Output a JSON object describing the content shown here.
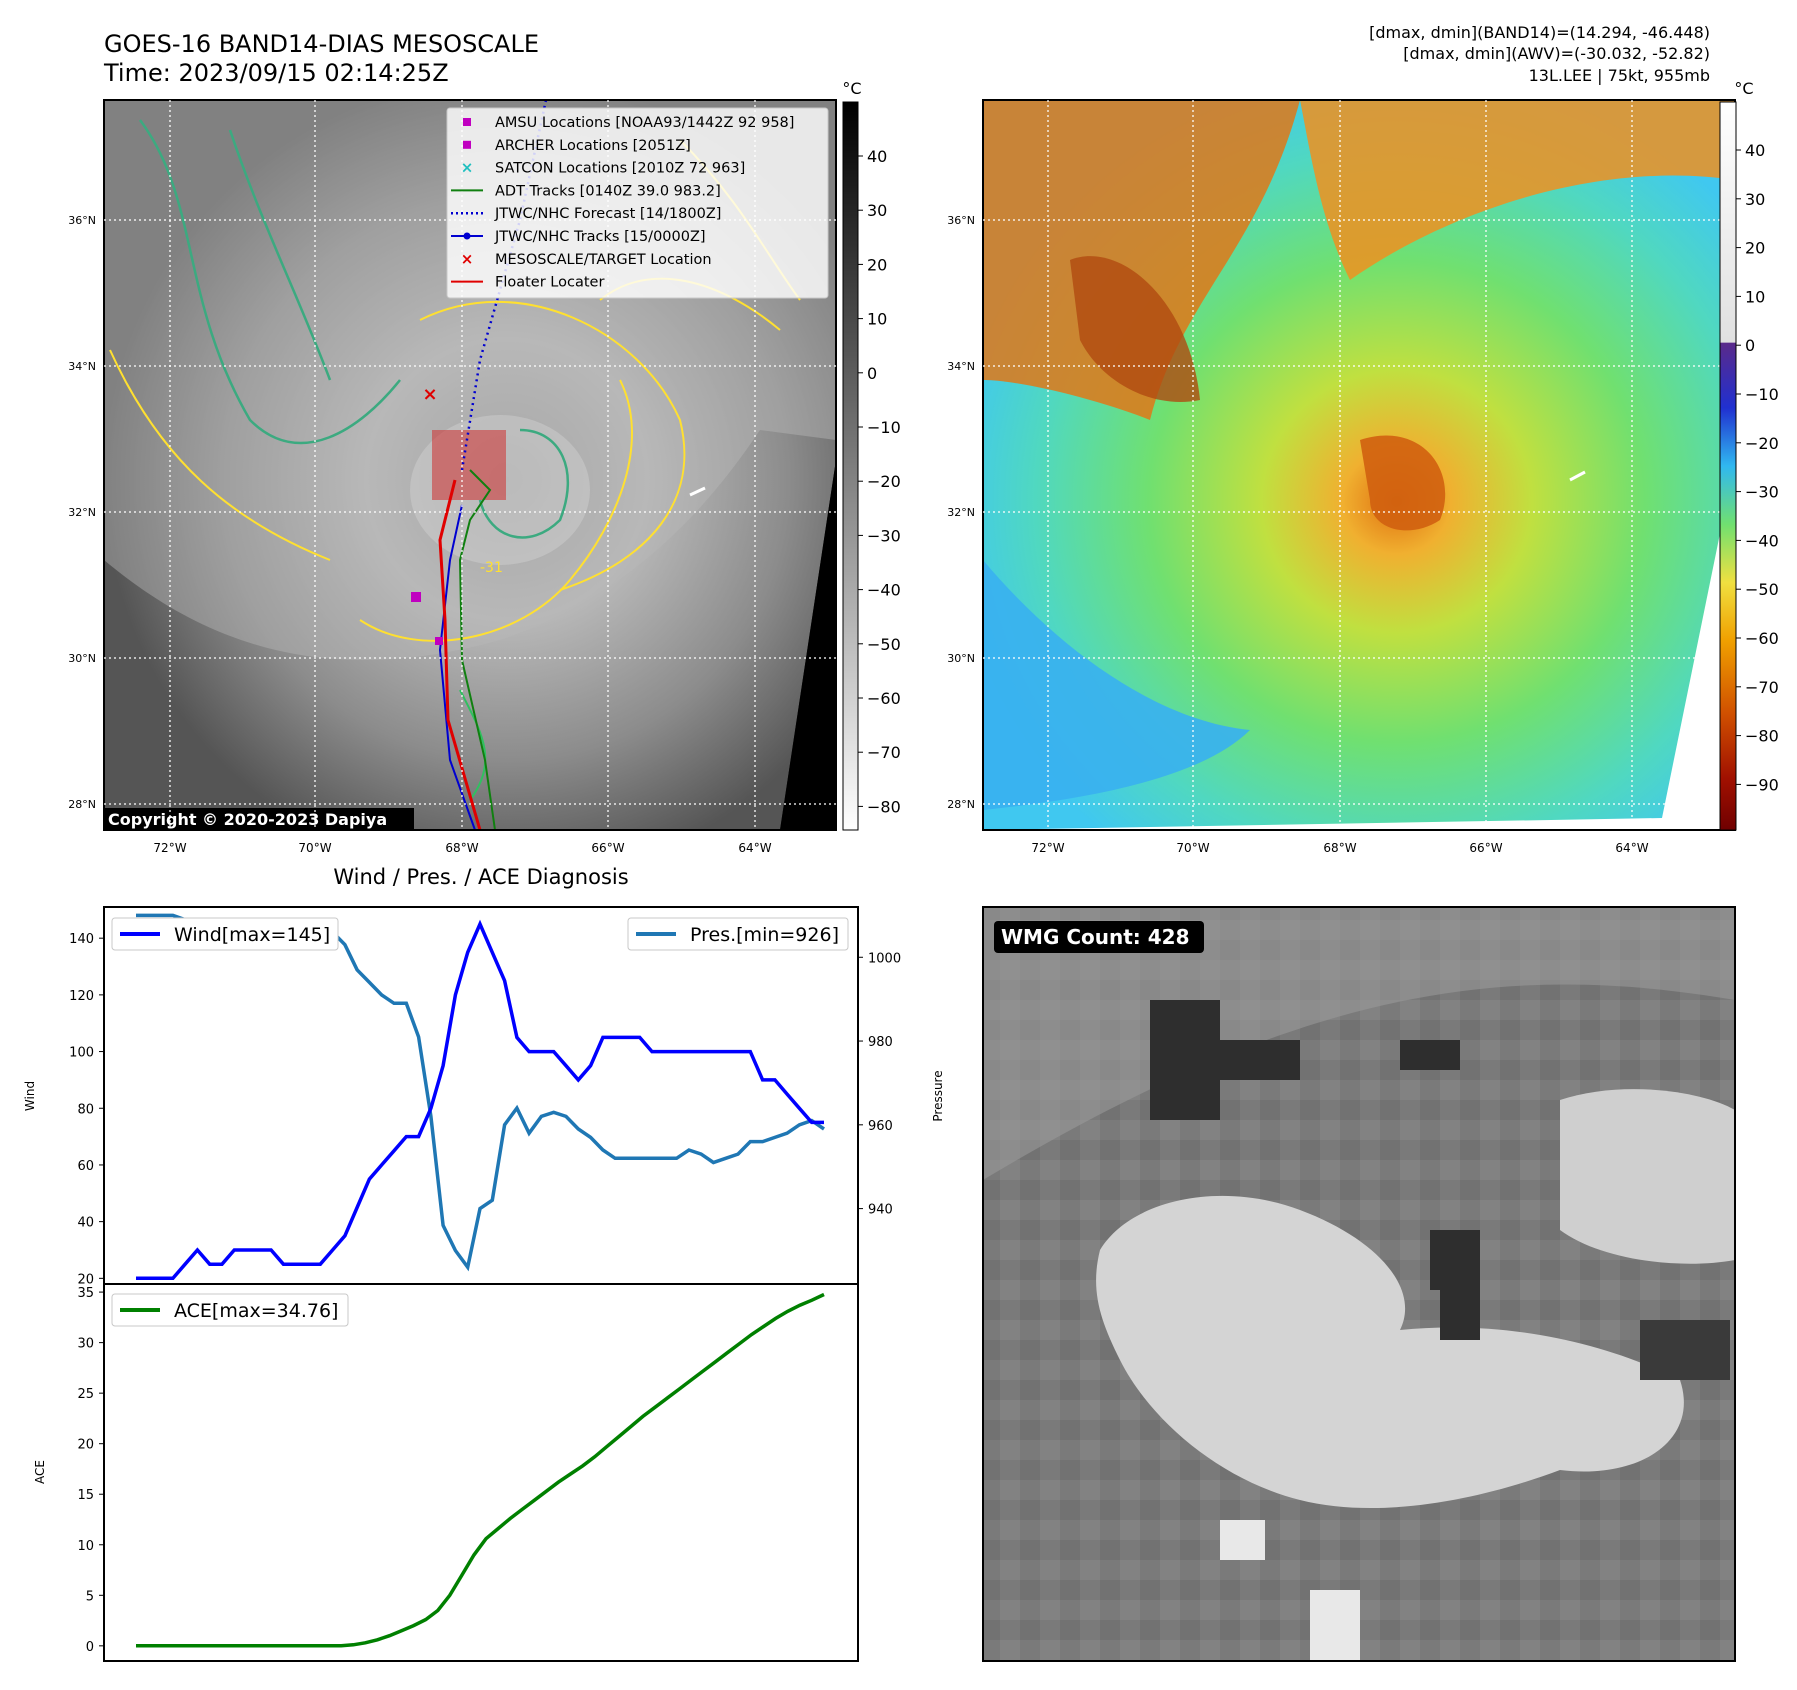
{
  "header": {
    "title_line1": "GOES-16 BAND14-DIAS MESOSCALE",
    "title_line2": "Time: 2023/09/15 02:14:25Z",
    "stats_line1": "[dmax, dmin](BAND14)=(14.294, -46.448)",
    "stats_line2": "[dmax, dmin](AWV)=(-30.032, -52.82)",
    "stats_line3": "13L.LEE | 75kt, 955mb"
  },
  "map_axes": {
    "lon_ticks": [
      "72°W",
      "70°W",
      "68°W",
      "66°W",
      "64°W"
    ],
    "lat_ticks": [
      "36°N",
      "34°N",
      "32°N",
      "30°N",
      "28°N"
    ],
    "copyright": "Copyright © 2020-2023 Dapiya",
    "contour_label": "-31"
  },
  "legend_map": [
    {
      "label": "AMSU Locations [NOAA93/1442Z 92 958]",
      "color": "#c000c0",
      "kind": "square"
    },
    {
      "label": "ARCHER Locations [2051Z]",
      "color": "#c000c0",
      "kind": "square"
    },
    {
      "label": "SATCON Locations [2010Z 72 963]",
      "color": "#20c0c0",
      "kind": "x"
    },
    {
      "label": "ADT Tracks [0140Z 39.0 983.2]",
      "color": "#108010",
      "kind": "line"
    },
    {
      "label": "JTWC/NHC Forecast [14/1800Z]",
      "color": "#0000d0",
      "kind": "dotted"
    },
    {
      "label": "JTWC/NHC Tracks [15/0000Z]",
      "color": "#0000d0",
      "kind": "dotline"
    },
    {
      "label": "MESOSCALE/TARGET Location",
      "color": "#e00000",
      "kind": "x"
    },
    {
      "label": "Floater Locater",
      "color": "#e00000",
      "kind": "line"
    }
  ],
  "colorbar_gray": {
    "unit": "°C",
    "ticks": [
      "40",
      "30",
      "20",
      "10",
      "0",
      "−10",
      "−20",
      "−30",
      "−40",
      "−50",
      "−60",
      "−70",
      "−80"
    ]
  },
  "colorbar_color": {
    "unit": "°C",
    "ticks": [
      "40",
      "30",
      "20",
      "10",
      "0",
      "−10",
      "−20",
      "−30",
      "−40",
      "−50",
      "−60",
      "−70",
      "−80",
      "−90"
    ]
  },
  "wmg": {
    "label": "WMG Count: 428"
  },
  "chart_data": [
    {
      "type": "line",
      "title": "Wind / Pres. / ACE Diagnosis",
      "ylabel": "Wind",
      "ylabel_right": "Pressure",
      "ylim": [
        18,
        151
      ],
      "ylim_right": [
        922,
        1012
      ],
      "yticks": [
        "20",
        "40",
        "60",
        "80",
        "100",
        "120",
        "140"
      ],
      "yticks_right": [
        "940",
        "960",
        "980",
        "1000"
      ],
      "series": [
        {
          "name": "Wind[max=145]",
          "color": "#0000ff",
          "values": [
            20,
            20,
            20,
            20,
            25,
            30,
            25,
            25,
            30,
            30,
            30,
            30,
            25,
            25,
            25,
            25,
            30,
            35,
            45,
            55,
            60,
            65,
            70,
            70,
            80,
            95,
            120,
            135,
            145,
            135,
            125,
            105,
            100,
            100,
            100,
            95,
            90,
            95,
            105,
            105,
            105,
            105,
            100,
            100,
            100,
            100,
            100,
            100,
            100,
            100,
            100,
            90,
            90,
            85,
            80,
            75,
            75
          ]
        },
        {
          "name": "Pres.[min=926]",
          "color": "#1f77b4",
          "values": [
            1010,
            1010,
            1010,
            1010,
            1009,
            1009,
            1009,
            1009,
            1009,
            1009,
            1009,
            1009,
            1009,
            1009,
            1009,
            1008,
            1006,
            1003,
            997,
            994,
            991,
            989,
            989,
            981,
            962,
            936,
            930,
            926,
            940,
            942,
            960,
            964,
            958,
            962,
            963,
            962,
            959,
            957,
            954,
            952,
            952,
            952,
            952,
            952,
            952,
            954,
            953,
            951,
            952,
            953,
            956,
            956,
            957,
            958,
            960,
            961,
            959
          ]
        }
      ]
    },
    {
      "type": "line",
      "ylabel": "ACE",
      "ylim": [
        -1.5,
        35.8
      ],
      "yticks": [
        "0",
        "5",
        "10",
        "15",
        "20",
        "25",
        "30",
        "35"
      ],
      "series": [
        {
          "name": "ACE[max=34.76]",
          "color": "#008000",
          "values": [
            0,
            0,
            0,
            0,
            0,
            0,
            0,
            0,
            0,
            0,
            0,
            0,
            0,
            0,
            0,
            0,
            0,
            0,
            0.1,
            0.3,
            0.6,
            1.0,
            1.5,
            2.0,
            2.6,
            3.5,
            5.0,
            7.0,
            9.0,
            10.6,
            11.6,
            12.6,
            13.5,
            14.4,
            15.3,
            16.2,
            17.0,
            17.8,
            18.7,
            19.7,
            20.7,
            21.7,
            22.7,
            23.6,
            24.5,
            25.4,
            26.3,
            27.2,
            28.1,
            29.0,
            29.9,
            30.8,
            31.6,
            32.4,
            33.1,
            33.7,
            34.2,
            34.76
          ]
        }
      ]
    }
  ]
}
